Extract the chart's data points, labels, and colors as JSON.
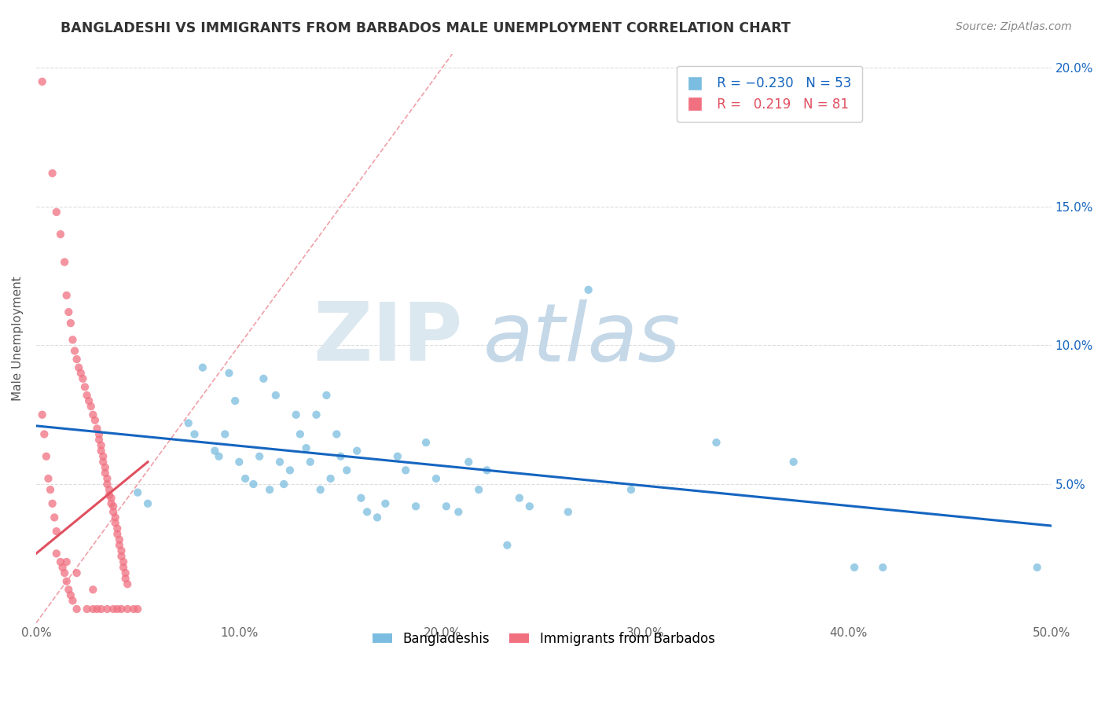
{
  "title": "BANGLADESHI VS IMMIGRANTS FROM BARBADOS MALE UNEMPLOYMENT CORRELATION CHART",
  "source": "Source: ZipAtlas.com",
  "ylabel": "Male Unemployment",
  "xmin": 0.0,
  "xmax": 0.5,
  "ymin": 0.0,
  "ymax": 0.205,
  "yticks": [
    0.0,
    0.05,
    0.1,
    0.15,
    0.2
  ],
  "ytick_labels_left": [
    "",
    "",
    "",
    "",
    ""
  ],
  "ytick_labels_right": [
    "",
    "5.0%",
    "10.0%",
    "15.0%",
    "20.0%"
  ],
  "xticks": [
    0.0,
    0.1,
    0.2,
    0.3,
    0.4,
    0.5
  ],
  "xtick_labels": [
    "0.0%",
    "10.0%",
    "20.0%",
    "30.0%",
    "40.0%",
    "50.0%"
  ],
  "blue_color": "#7bbde0",
  "pink_color": "#f07080",
  "trend_blue_color": "#1565C0",
  "trend_pink_color": "#e05060",
  "diag_color": "#f0a0a8",
  "blue_scatter": [
    [
      0.05,
      0.047
    ],
    [
      0.055,
      0.043
    ],
    [
      0.075,
      0.072
    ],
    [
      0.078,
      0.068
    ],
    [
      0.082,
      0.092
    ],
    [
      0.088,
      0.062
    ],
    [
      0.09,
      0.06
    ],
    [
      0.093,
      0.068
    ],
    [
      0.095,
      0.09
    ],
    [
      0.098,
      0.08
    ],
    [
      0.1,
      0.058
    ],
    [
      0.103,
      0.052
    ],
    [
      0.107,
      0.05
    ],
    [
      0.11,
      0.06
    ],
    [
      0.112,
      0.088
    ],
    [
      0.115,
      0.048
    ],
    [
      0.118,
      0.082
    ],
    [
      0.12,
      0.058
    ],
    [
      0.122,
      0.05
    ],
    [
      0.125,
      0.055
    ],
    [
      0.128,
      0.075
    ],
    [
      0.13,
      0.068
    ],
    [
      0.133,
      0.063
    ],
    [
      0.135,
      0.058
    ],
    [
      0.138,
      0.075
    ],
    [
      0.14,
      0.048
    ],
    [
      0.143,
      0.082
    ],
    [
      0.145,
      0.052
    ],
    [
      0.148,
      0.068
    ],
    [
      0.15,
      0.06
    ],
    [
      0.153,
      0.055
    ],
    [
      0.158,
      0.062
    ],
    [
      0.16,
      0.045
    ],
    [
      0.163,
      0.04
    ],
    [
      0.168,
      0.038
    ],
    [
      0.172,
      0.043
    ],
    [
      0.178,
      0.06
    ],
    [
      0.182,
      0.055
    ],
    [
      0.187,
      0.042
    ],
    [
      0.192,
      0.065
    ],
    [
      0.197,
      0.052
    ],
    [
      0.202,
      0.042
    ],
    [
      0.208,
      0.04
    ],
    [
      0.213,
      0.058
    ],
    [
      0.218,
      0.048
    ],
    [
      0.222,
      0.055
    ],
    [
      0.232,
      0.028
    ],
    [
      0.238,
      0.045
    ],
    [
      0.243,
      0.042
    ],
    [
      0.262,
      0.04
    ],
    [
      0.272,
      0.12
    ],
    [
      0.293,
      0.048
    ],
    [
      0.335,
      0.065
    ],
    [
      0.373,
      0.058
    ],
    [
      0.403,
      0.02
    ],
    [
      0.417,
      0.02
    ],
    [
      0.493,
      0.02
    ]
  ],
  "pink_scatter": [
    [
      0.003,
      0.195
    ],
    [
      0.008,
      0.162
    ],
    [
      0.01,
      0.148
    ],
    [
      0.012,
      0.14
    ],
    [
      0.014,
      0.13
    ],
    [
      0.015,
      0.118
    ],
    [
      0.016,
      0.112
    ],
    [
      0.017,
      0.108
    ],
    [
      0.018,
      0.102
    ],
    [
      0.019,
      0.098
    ],
    [
      0.02,
      0.095
    ],
    [
      0.021,
      0.092
    ],
    [
      0.022,
      0.09
    ],
    [
      0.023,
      0.088
    ],
    [
      0.024,
      0.085
    ],
    [
      0.025,
      0.082
    ],
    [
      0.026,
      0.08
    ],
    [
      0.027,
      0.078
    ],
    [
      0.028,
      0.075
    ],
    [
      0.029,
      0.073
    ],
    [
      0.03,
      0.07
    ],
    [
      0.031,
      0.068
    ],
    [
      0.031,
      0.066
    ],
    [
      0.032,
      0.064
    ],
    [
      0.032,
      0.062
    ],
    [
      0.033,
      0.06
    ],
    [
      0.033,
      0.058
    ],
    [
      0.034,
      0.056
    ],
    [
      0.034,
      0.054
    ],
    [
      0.035,
      0.052
    ],
    [
      0.035,
      0.05
    ],
    [
      0.036,
      0.048
    ],
    [
      0.036,
      0.046
    ],
    [
      0.037,
      0.045
    ],
    [
      0.037,
      0.043
    ],
    [
      0.038,
      0.042
    ],
    [
      0.038,
      0.04
    ],
    [
      0.039,
      0.038
    ],
    [
      0.039,
      0.036
    ],
    [
      0.04,
      0.034
    ],
    [
      0.04,
      0.032
    ],
    [
      0.041,
      0.03
    ],
    [
      0.041,
      0.028
    ],
    [
      0.042,
      0.026
    ],
    [
      0.042,
      0.024
    ],
    [
      0.043,
      0.022
    ],
    [
      0.043,
      0.02
    ],
    [
      0.044,
      0.018
    ],
    [
      0.044,
      0.016
    ],
    [
      0.045,
      0.014
    ],
    [
      0.01,
      0.025
    ],
    [
      0.012,
      0.022
    ],
    [
      0.013,
      0.02
    ],
    [
      0.014,
      0.018
    ],
    [
      0.015,
      0.015
    ],
    [
      0.016,
      0.012
    ],
    [
      0.017,
      0.01
    ],
    [
      0.018,
      0.008
    ],
    [
      0.02,
      0.005
    ],
    [
      0.025,
      0.005
    ],
    [
      0.028,
      0.005
    ],
    [
      0.03,
      0.005
    ],
    [
      0.032,
      0.005
    ],
    [
      0.035,
      0.005
    ],
    [
      0.038,
      0.005
    ],
    [
      0.04,
      0.005
    ],
    [
      0.042,
      0.005
    ],
    [
      0.045,
      0.005
    ],
    [
      0.048,
      0.005
    ],
    [
      0.05,
      0.005
    ],
    [
      0.003,
      0.075
    ],
    [
      0.004,
      0.068
    ],
    [
      0.005,
      0.06
    ],
    [
      0.006,
      0.052
    ],
    [
      0.007,
      0.048
    ],
    [
      0.008,
      0.043
    ],
    [
      0.009,
      0.038
    ],
    [
      0.01,
      0.033
    ],
    [
      0.015,
      0.022
    ],
    [
      0.02,
      0.018
    ],
    [
      0.028,
      0.012
    ]
  ],
  "blue_trend_x": [
    0.0,
    0.5
  ],
  "blue_trend_y": [
    0.071,
    0.035
  ],
  "pink_trend_x": [
    0.0,
    0.055
  ],
  "pink_trend_y": [
    0.025,
    0.058
  ]
}
